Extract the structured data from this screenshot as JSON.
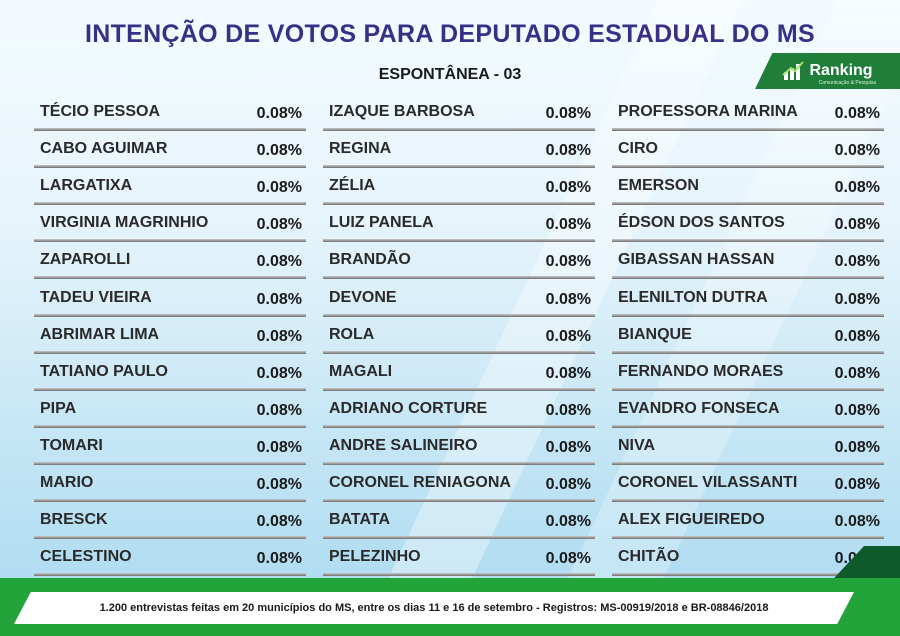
{
  "header": {
    "title": "INTENÇÃO DE VOTOS PARA DEPUTADO ESTADUAL DO MS",
    "subtitle": "ESPONTÂNEA - 03",
    "logo_text": "Ranking",
    "logo_subtext": "Comunicação & Pesquisa"
  },
  "colors": {
    "title": "#3a2f86",
    "green": "#23a43a",
    "dark_green": "#0f5a2a"
  },
  "chart_data": {
    "type": "table",
    "title": "INTENÇÃO DE VOTOS PARA DEPUTADO ESTADUAL DO MS",
    "subtitle": "ESPONTÂNEA - 03",
    "columns": [
      [
        {
          "name": "TÉCIO PESSOA",
          "value": "0.08%"
        },
        {
          "name": "CABO AGUIMAR",
          "value": "0.08%"
        },
        {
          "name": "LARGATIXA",
          "value": "0.08%"
        },
        {
          "name": "VIRGINIA MAGRINHIO",
          "value": "0.08%"
        },
        {
          "name": "ZAPAROLLI",
          "value": "0.08%"
        },
        {
          "name": "TADEU VIEIRA",
          "value": "0.08%"
        },
        {
          "name": "ABRIMAR LIMA",
          "value": "0.08%"
        },
        {
          "name": "TATIANO PAULO",
          "value": "0.08%"
        },
        {
          "name": "PIPA",
          "value": "0.08%"
        },
        {
          "name": "TOMARI",
          "value": "0.08%"
        },
        {
          "name": "MARIO",
          "value": "0.08%"
        },
        {
          "name": "BRESCK",
          "value": "0.08%"
        },
        {
          "name": "CELESTINO",
          "value": "0.08%"
        }
      ],
      [
        {
          "name": "IZAQUE BARBOSA",
          "value": "0.08%"
        },
        {
          "name": "REGINA",
          "value": "0.08%"
        },
        {
          "name": "ZÉLIA",
          "value": "0.08%"
        },
        {
          "name": "LUIZ PANELA",
          "value": "0.08%"
        },
        {
          "name": "BRANDÃO",
          "value": "0.08%"
        },
        {
          "name": "DEVONE",
          "value": "0.08%"
        },
        {
          "name": "ROLA",
          "value": "0.08%"
        },
        {
          "name": "MAGALI",
          "value": "0.08%"
        },
        {
          "name": "ADRIANO CORTURE",
          "value": "0.08%"
        },
        {
          "name": "ANDRE SALINEIRO",
          "value": "0.08%"
        },
        {
          "name": "CORONEL RENIAGONA",
          "value": "0.08%"
        },
        {
          "name": "BATATA",
          "value": "0.08%"
        },
        {
          "name": "PELEZINHO",
          "value": "0.08%"
        }
      ],
      [
        {
          "name": "PROFESSORA MARINA",
          "value": "0.08%"
        },
        {
          "name": "CIRO",
          "value": "0.08%"
        },
        {
          "name": "EMERSON",
          "value": "0.08%"
        },
        {
          "name": "ÉDSON DOS SANTOS",
          "value": "0.08%"
        },
        {
          "name": "GIBASSAN HASSAN",
          "value": "0.08%"
        },
        {
          "name": "ELENILTON DUTRA",
          "value": "0.08%"
        },
        {
          "name": "BIANQUE",
          "value": "0.08%"
        },
        {
          "name": "FERNANDO MORAES",
          "value": "0.08%"
        },
        {
          "name": "EVANDRO FONSECA",
          "value": "0.08%"
        },
        {
          "name": "NIVA",
          "value": "0.08%"
        },
        {
          "name": "CORONEL VILASSANTI",
          "value": "0.08%"
        },
        {
          "name": "ALEX FIGUEIREDO",
          "value": "0.08%"
        },
        {
          "name": "CHITÃO",
          "value": "0.08%"
        }
      ]
    ]
  },
  "footer": {
    "text": "1.200 entrevistas feitas em 20 municípios do MS, entre os dias 11 e 16 de setembro - Registros:  MS-00919/2018 e BR-08846/2018"
  }
}
